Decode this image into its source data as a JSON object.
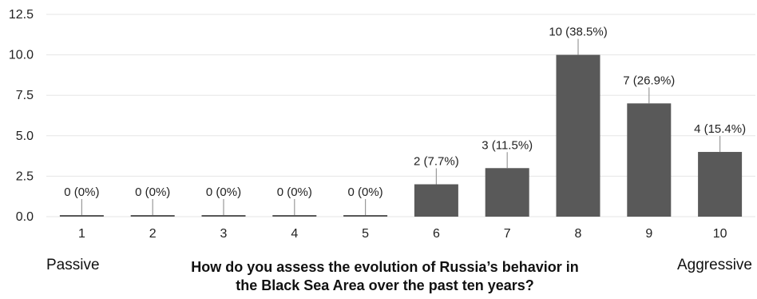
{
  "chart_data": {
    "type": "bar",
    "categories": [
      "1",
      "2",
      "3",
      "4",
      "5",
      "6",
      "7",
      "8",
      "9",
      "10"
    ],
    "values": [
      0,
      0,
      0,
      0,
      0,
      2,
      3,
      10,
      7,
      4
    ],
    "data_labels": [
      "0 (0%)",
      "0 (0%)",
      "0 (0%)",
      "0 (0%)",
      "0 (0%)",
      "2 (7.7%)",
      "3 (11.5%)",
      "10 (38.5%)",
      "7 (26.9%)",
      "4 (15.4%)"
    ],
    "ylim": [
      0,
      12.5
    ],
    "y_ticks": [
      "0.0",
      "2.5",
      "5.0",
      "7.5",
      "10.0",
      "12.5"
    ],
    "grid": true,
    "legend": "none",
    "bar_color": "#595959",
    "grid_color": "#e6e6e6",
    "leader_color": "#9a9a9a",
    "left_label": "Passive",
    "right_label": "Aggressive",
    "xlabel_line1": "How do you assess the evolution of Russia’s behavior in",
    "xlabel_line2": "the Black Sea Area over the past ten years?"
  }
}
